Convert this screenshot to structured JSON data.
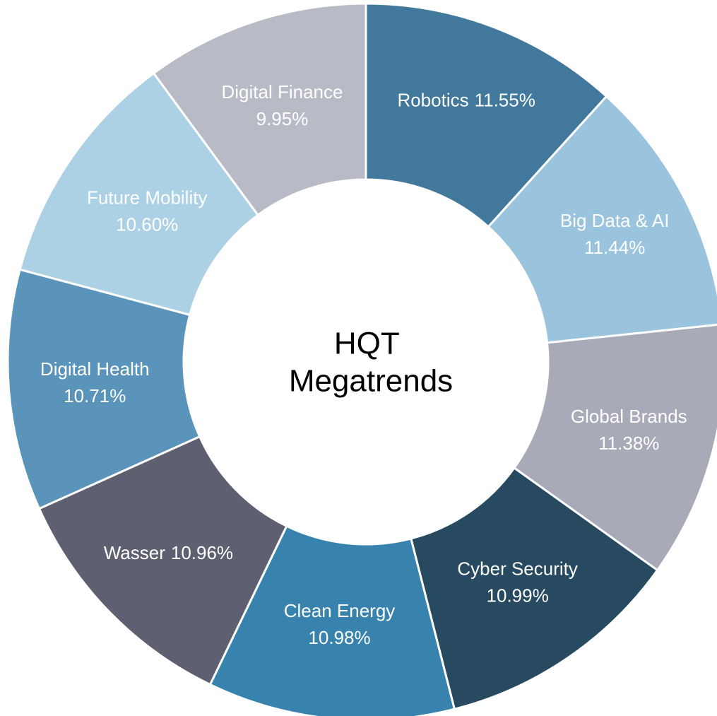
{
  "chart_data": {
    "type": "donut",
    "title": "HQT Megatrends",
    "categories": [
      "Robotics",
      "Big Data & AI",
      "Global Brands",
      "Cyber Security",
      "Clean Energy",
      "Wasser",
      "Digital Health",
      "Future Mobility",
      "Digital Finance"
    ],
    "values": [
      11.55,
      11.44,
      11.38,
      10.99,
      10.98,
      10.96,
      10.71,
      10.6,
      9.95
    ],
    "value_labels": [
      "11.55%",
      "11.44%",
      "11.38%",
      "10.99%",
      "10.98%",
      "10.96%",
      "10.71%",
      "10.60%",
      "9.95%"
    ],
    "colors": [
      "#41789b",
      "#9ac4de",
      "#a8aab8",
      "#274a60",
      "#3783ad",
      "#5e6072",
      "#5a94bb",
      "#acd0e4",
      "#b8bbc5"
    ]
  }
}
